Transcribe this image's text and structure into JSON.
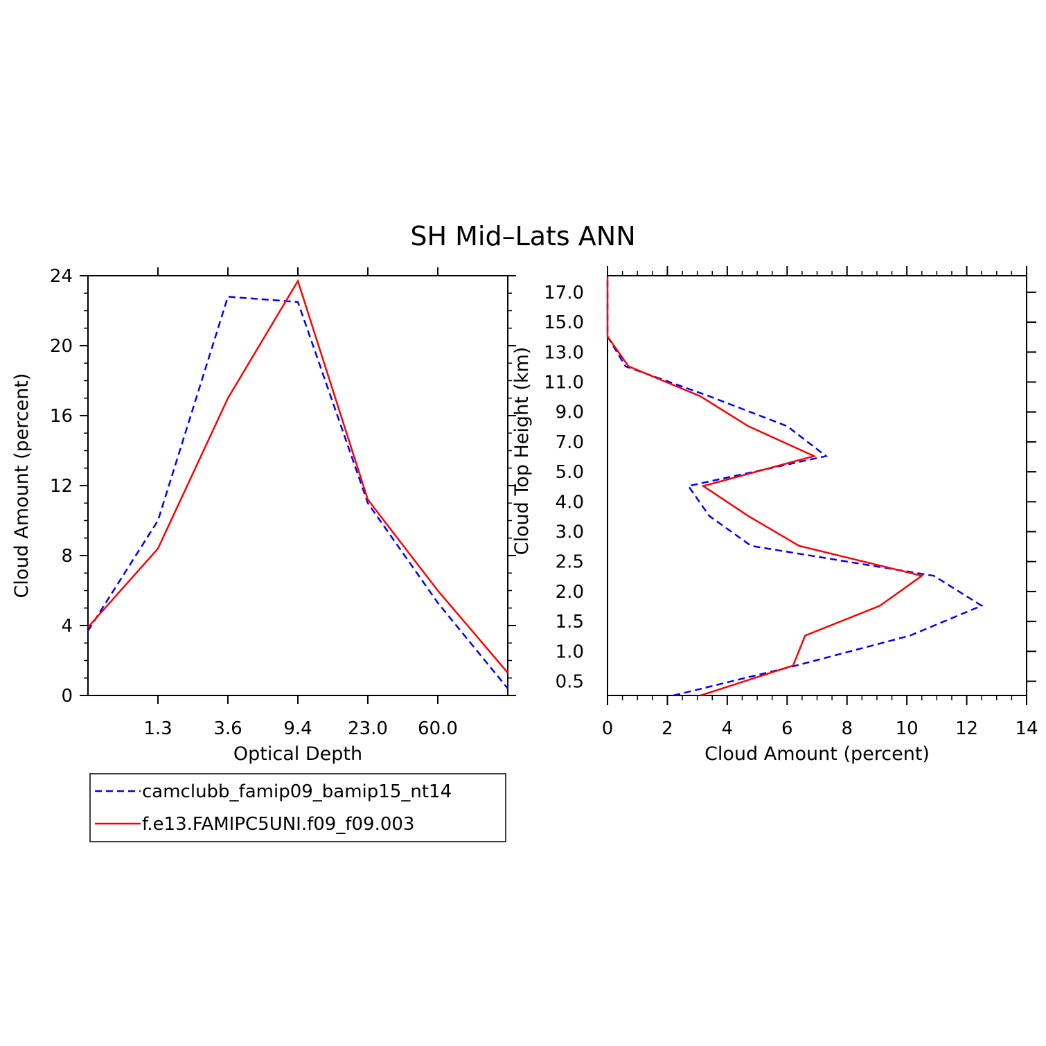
{
  "title": "SH Mid–Lats ANN",
  "legend": {
    "entries": [
      {
        "label": "camclubb_famip09_bamip15_nt14",
        "color": "#0000ff",
        "dash": true
      },
      {
        "label": "f.e13.FAMIPC5UNI.f09_f09.003",
        "color": "#ff0000",
        "dash": false
      }
    ]
  },
  "chart_data": [
    {
      "type": "line",
      "xlabel": "Optical Depth",
      "ylabel": "Cloud Amount (percent)",
      "ylim": [
        0,
        24
      ],
      "yticks": [
        "0",
        "4",
        "8",
        "12",
        "16",
        "20",
        "24"
      ],
      "xticks": [
        "1.3",
        "3.6",
        "9.4",
        "23.0",
        "60.0"
      ],
      "x_positions": [
        0,
        1,
        2,
        3,
        4,
        5,
        6
      ],
      "series": [
        {
          "name": "camclubb_famip09_bamip15_nt14",
          "color": "#0000ff",
          "dash": true,
          "values": [
            3.7,
            10.0,
            22.8,
            22.5,
            11.0,
            5.3,
            0.4
          ]
        },
        {
          "name": "f.e13.FAMIPC5UNI.f09_f09.003",
          "color": "#ff0000",
          "dash": false,
          "values": [
            3.9,
            8.4,
            17.0,
            23.7,
            11.2,
            6.0,
            1.3
          ]
        }
      ]
    },
    {
      "type": "line",
      "xlabel": "Cloud Amount (percent)",
      "ylabel": "Cloud Top Height (km)",
      "xlim": [
        0,
        14
      ],
      "xticks": [
        "0",
        "2",
        "4",
        "6",
        "8",
        "10",
        "12",
        "14"
      ],
      "yticks": [
        "0.5",
        "1.0",
        "1.5",
        "2.0",
        "2.5",
        "3.0",
        "4.0",
        "5.0",
        "7.0",
        "9.0",
        "11.0",
        "13.0",
        "15.0",
        "17.0"
      ],
      "series": [
        {
          "name": "camclubb_famip09_bamip15_nt14",
          "color": "#0000ff",
          "dash": true,
          "values": [
            2.2,
            6.3,
            10.1,
            12.5,
            10.9,
            4.8,
            3.4,
            2.7,
            7.3,
            6.0,
            3.4,
            0.6,
            0.0,
            0.0,
            0.0
          ]
        },
        {
          "name": "f.e13.FAMIPC5UNI.f09_f09.003",
          "color": "#ff0000",
          "dash": false,
          "values": [
            3.1,
            6.2,
            6.6,
            9.1,
            10.5,
            6.4,
            4.7,
            3.2,
            6.9,
            4.7,
            3.1,
            0.7,
            0.0,
            0.0,
            0.0
          ]
        }
      ]
    }
  ]
}
